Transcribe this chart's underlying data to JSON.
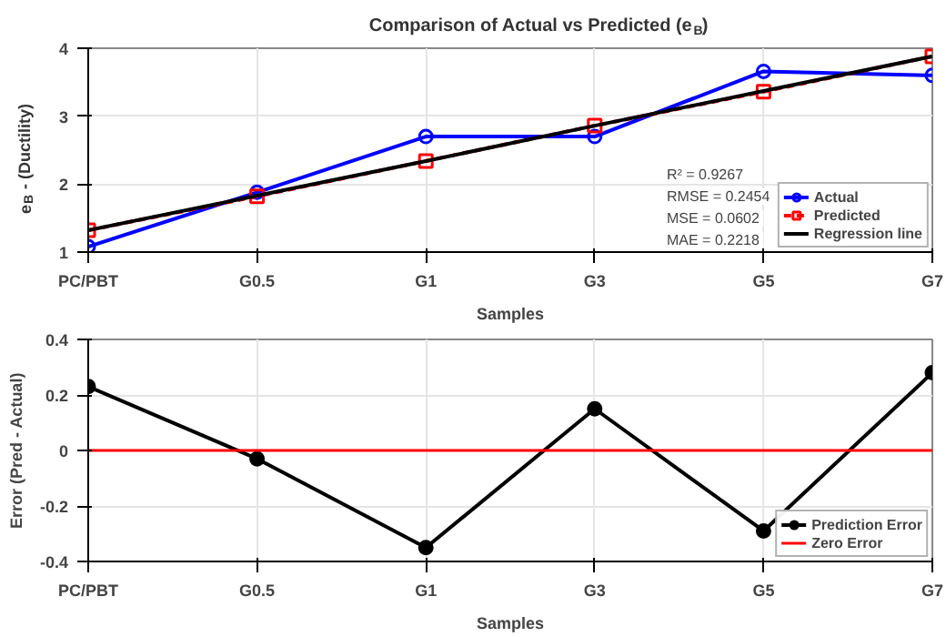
{
  "chart_data": [
    {
      "type": "line",
      "title": "Comparison of Actual vs Predicted (e$_{B}$)",
      "xlabel": "Samples",
      "ylabel": "e$_{B}$ - (Ductility)",
      "categories": [
        "PC/PBT",
        "G0.5",
        "G1",
        "G3",
        "G5",
        "G7"
      ],
      "series": [
        {
          "name": "Actual",
          "color": "#0000ff",
          "marker": "circle",
          "line_style": "solid",
          "values": [
            1.08,
            1.88,
            2.7,
            2.7,
            3.66,
            3.6
          ]
        },
        {
          "name": "Predicted",
          "color": "#ff0000",
          "marker": "square",
          "line_style": "dashed",
          "values": [
            1.32,
            1.82,
            2.34,
            2.86,
            3.36,
            3.88
          ]
        },
        {
          "name": "Regression line",
          "color": "#000000",
          "marker": "none",
          "line_style": "solid",
          "values": [
            1.32,
            1.83,
            2.34,
            2.86,
            3.37,
            3.88
          ]
        }
      ],
      "ylim": [
        1,
        4
      ],
      "yticks": [
        1,
        2,
        3,
        4
      ],
      "grid": true,
      "legend": "bottom right",
      "annotations": [
        "R² = 0.9267",
        "RMSE = 0.2454",
        "MSE  = 0.0602",
        "MAE  = 0.2218"
      ]
    },
    {
      "type": "line",
      "xlabel": "Samples",
      "ylabel": "Error (Pred - Actual)",
      "categories": [
        "PC/PBT",
        "G0.5",
        "G1",
        "G3",
        "G5",
        "G7"
      ],
      "series": [
        {
          "name": "Prediction Error",
          "color": "#000000",
          "marker": "circle",
          "line_style": "solid",
          "values": [
            0.23,
            -0.03,
            -0.35,
            0.15,
            -0.29,
            0.28
          ]
        }
      ],
      "ref_lines": [
        {
          "axis": "y",
          "value": 0,
          "label": "Zero Error",
          "color": "#ff0000"
        }
      ],
      "ylim": [
        -0.4,
        0.4
      ],
      "yticks": [
        -0.4,
        -0.2,
        0,
        0.2,
        0.4
      ],
      "grid": true,
      "legend": "bottom right"
    }
  ]
}
